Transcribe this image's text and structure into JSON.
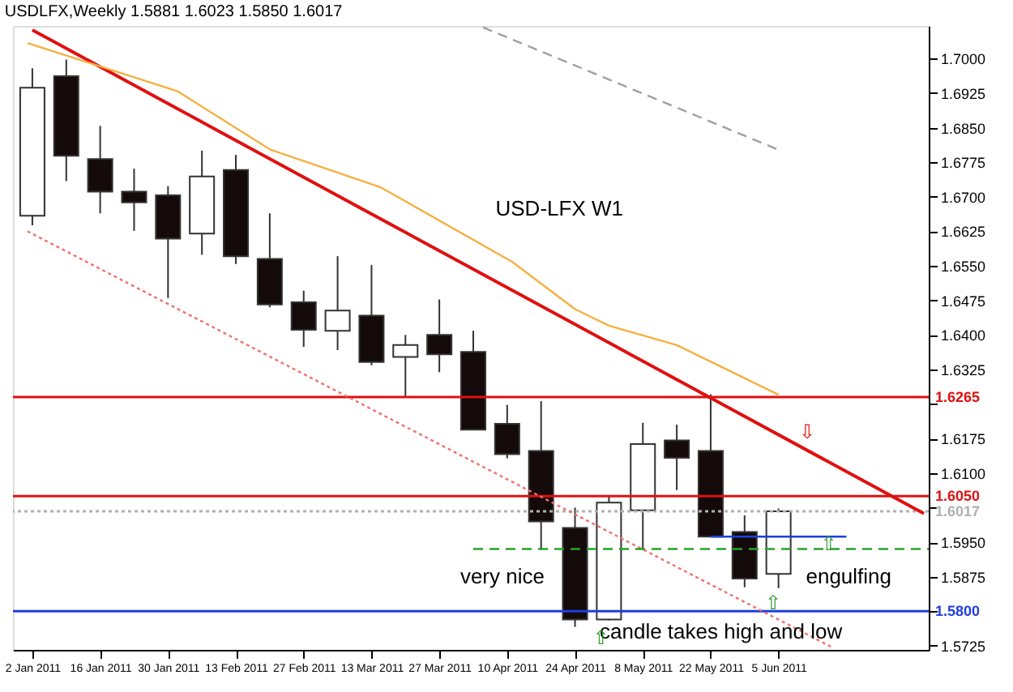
{
  "chart_data": {
    "type": "candlestick",
    "title": "USDLFX,Weekly  1.5881 1.6023 1.5850 1.6017",
    "x": [
      "2011-01-02",
      "2011-01-09",
      "2011-01-16",
      "2011-01-23",
      "2011-01-30",
      "2011-02-06",
      "2011-02-13",
      "2011-02-20",
      "2011-02-27",
      "2011-03-06",
      "2011-03-13",
      "2011-03-20",
      "2011-03-27",
      "2011-04-03",
      "2011-04-10",
      "2011-04-17",
      "2011-04-24",
      "2011-05-01",
      "2011-05-08",
      "2011-05-15",
      "2011-05-22",
      "2011-05-29",
      "2011-06-05"
    ],
    "ohlc": [
      [
        1.6659,
        1.6979,
        1.6638,
        1.6937
      ],
      [
        1.6962,
        1.6998,
        1.6734,
        1.6789
      ],
      [
        1.6782,
        1.6854,
        1.6664,
        1.6711
      ],
      [
        1.6711,
        1.6761,
        1.6626,
        1.6688
      ],
      [
        1.6703,
        1.6723,
        1.648,
        1.6609
      ],
      [
        1.662,
        1.68,
        1.6574,
        1.6744
      ],
      [
        1.6758,
        1.6791,
        1.6554,
        1.6571
      ],
      [
        1.6565,
        1.6664,
        1.646,
        1.6466
      ],
      [
        1.6471,
        1.6496,
        1.6374,
        1.6411
      ],
      [
        1.6409,
        1.6571,
        1.6367,
        1.6453
      ],
      [
        1.6442,
        1.6552,
        1.6334,
        1.6341
      ],
      [
        1.6352,
        1.64,
        1.6265,
        1.6378
      ],
      [
        1.64,
        1.6477,
        1.6319,
        1.6358
      ],
      [
        1.6363,
        1.6409,
        1.6194,
        1.6194
      ],
      [
        1.6207,
        1.6248,
        1.6132,
        1.6141
      ],
      [
        1.6148,
        1.6256,
        1.5933,
        1.5995
      ],
      [
        1.5981,
        1.6025,
        1.5766,
        1.5782
      ],
      [
        1.5782,
        1.6052,
        1.578,
        1.6036
      ],
      [
        1.6019,
        1.6209,
        1.5933,
        1.6163
      ],
      [
        1.6171,
        1.6205,
        1.6063,
        1.6133
      ],
      [
        1.6148,
        1.6271,
        1.5962,
        1.5962
      ],
      [
        1.5972,
        1.6008,
        1.5852,
        1.5871
      ],
      [
        1.5881,
        1.6023,
        1.585,
        1.6017
      ]
    ],
    "series": [
      {
        "type": "line",
        "color": "#e01010",
        "x": [
          "2011-01-02",
          "2011-07-05"
        ],
        "values": [
          1.7062,
          1.6012
        ]
      },
      {
        "type": "line",
        "color": "#f07070",
        "line_style": "dotted",
        "x": [
          "2011-01-01",
          "2011-06-16"
        ],
        "values": [
          1.6625,
          1.5722
        ]
      },
      {
        "type": "line",
        "color": "#f5b041",
        "x": [
          "2011-01-01",
          "2011-02-01",
          "2011-02-20",
          "2011-03-15",
          "2011-04-11",
          "2011-04-24",
          "2011-05-01",
          "2011-05-15",
          "2011-06-05"
        ],
        "values": [
          1.7034,
          1.6929,
          1.6803,
          1.672,
          1.6559,
          1.6456,
          1.642,
          1.6378,
          1.627
        ]
      },
      {
        "type": "line",
        "color": "#a0a0a0",
        "line_style": "dashed",
        "x": [
          "2011-04-05",
          "2011-06-05"
        ],
        "values": [
          1.7068,
          1.6802
        ]
      },
      {
        "type": "line",
        "color": "#2ca02c",
        "line_style": "dashed",
        "x": [
          "2011-04-03",
          "2011-07-06"
        ],
        "values": [
          1.5935,
          1.5935
        ]
      },
      {
        "type": "line",
        "color": "#1f3fe0",
        "x": [
          "2011-05-22",
          "2011-06-19"
        ],
        "values": [
          1.5962,
          1.5962
        ]
      }
    ],
    "ref_lines": [
      {
        "axis": "y",
        "value": 1.6265,
        "label": "1.6265",
        "color": "#e01010"
      },
      {
        "axis": "y",
        "value": 1.605,
        "label": "1.6050",
        "color": "#e01010"
      },
      {
        "axis": "y",
        "value": 1.6017,
        "label": "1.6017",
        "color": "#b0b0b0",
        "line_style": "dotted"
      },
      {
        "axis": "y",
        "value": 1.58,
        "label": "1.5800",
        "color": "#1f3fe0"
      }
    ],
    "annotations": [
      "USD-LFX W1",
      "very nice",
      "engulfing",
      "candle takes high and low",
      "⇩",
      "⇧",
      "⇧",
      "⇧"
    ],
    "xlim": [
      "2010-12-29",
      "2011-07-06"
    ],
    "xticks": [
      {
        "value": "2011-01-02",
        "label": "2 Jan 2011"
      },
      {
        "value": "2011-01-16",
        "label": "16 Jan 2011"
      },
      {
        "value": "2011-01-30",
        "label": "30 Jan 2011"
      },
      {
        "value": "2011-02-13",
        "label": "13 Feb 2011"
      },
      {
        "value": "2011-02-27",
        "label": "27 Feb 2011"
      },
      {
        "value": "2011-03-13",
        "label": "13 Mar 2011"
      },
      {
        "value": "2011-03-27",
        "label": "27 Mar 2011"
      },
      {
        "value": "2011-04-10",
        "label": "10 Apr 2011"
      },
      {
        "value": "2011-04-24",
        "label": "24 Apr 2011"
      },
      {
        "value": "2011-05-08",
        "label": "8 May 2011"
      },
      {
        "value": "2011-05-22",
        "label": "22 May 2011"
      },
      {
        "value": "2011-06-05",
        "label": "5 Jun 2011"
      }
    ],
    "ylim": [
      1.5716,
      1.7071
    ],
    "yticks": [
      {
        "value": 1.5725,
        "label": "1.5725"
      },
      {
        "value": 1.58,
        "label": null
      },
      {
        "value": 1.5875,
        "label": "1.5875"
      },
      {
        "value": 1.595,
        "label": "1.5950"
      },
      {
        "value": 1.6025,
        "label": null
      },
      {
        "value": 1.61,
        "label": "1.6100"
      },
      {
        "value": 1.6175,
        "label": "1.6175"
      },
      {
        "value": 1.625,
        "label": null
      },
      {
        "value": 1.6325,
        "label": "1.6325"
      },
      {
        "value": 1.64,
        "label": "1.6400"
      },
      {
        "value": 1.6475,
        "label": "1.6475"
      },
      {
        "value": 1.655,
        "label": "1.6550"
      },
      {
        "value": 1.6625,
        "label": "1.6625"
      },
      {
        "value": 1.67,
        "label": "1.6700"
      },
      {
        "value": 1.6775,
        "label": "1.6775"
      },
      {
        "value": 1.685,
        "label": "1.6850"
      },
      {
        "value": 1.6925,
        "label": "1.6925"
      },
      {
        "value": 1.7,
        "label": "1.7000"
      }
    ],
    "grid": false
  }
}
